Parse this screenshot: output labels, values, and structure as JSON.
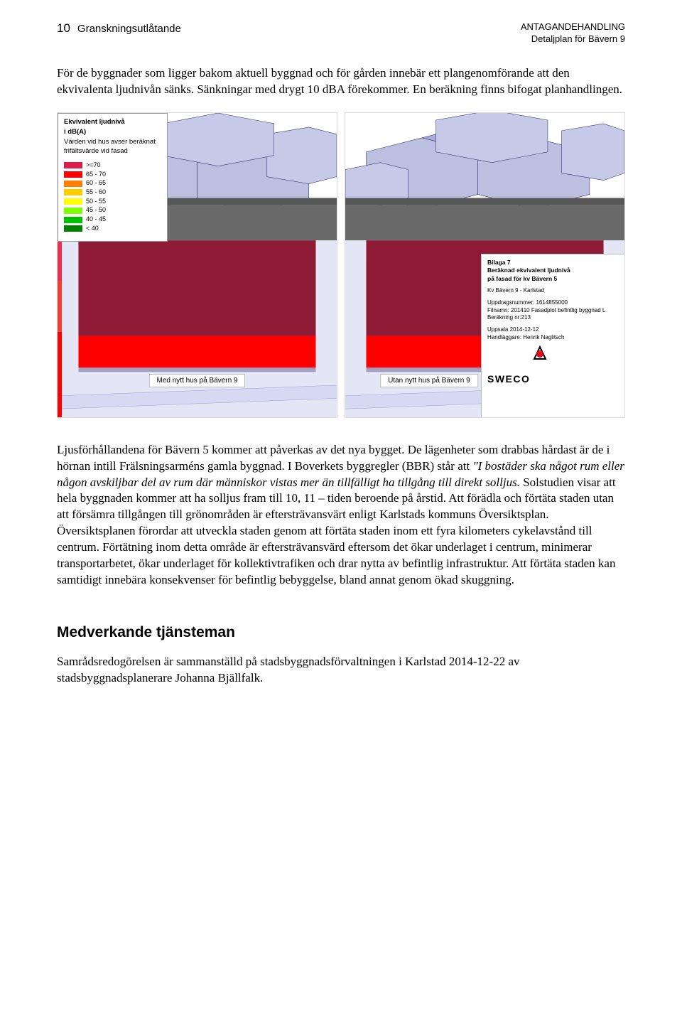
{
  "header": {
    "page_number": "10",
    "doc_type": "Granskningsutlåtande",
    "status_line": "ANTAGANDEHANDLING",
    "plan_line": "Detaljplan för Bävern 9"
  },
  "paragraph1": "För de byggnader som ligger bakom aktuell byggnad och för gården innebär ett plangenomförande att den ekvivalenta ljudnivån sänks. Sänkningar med drygt 10 dBA förekommer. En beräkning finns bifogat planhandlingen.",
  "figure": {
    "legend": {
      "title1": "Ekvivalent ljudnivå",
      "title2": "i dB(A)",
      "sub1": "Värden vid hus avser beräknat",
      "sub2": "frifältsvärde vid fasad",
      "items": [
        {
          "color": "#da1f4a",
          "label": ">=70"
        },
        {
          "color": "#ff0000",
          "label": "65 - 70"
        },
        {
          "color": "#ff8000",
          "label": "60 - 65"
        },
        {
          "color": "#ffcc00",
          "label": "55 - 60"
        },
        {
          "color": "#ffff00",
          "label": "50 - 55"
        },
        {
          "color": "#80ff00",
          "label": "45 - 50"
        },
        {
          "color": "#00c000",
          "label": "40 - 45"
        },
        {
          "color": "#008000",
          "label": "< 40"
        }
      ]
    },
    "caption_left": "Med nytt hus på Bävern 9",
    "caption_right": "Utan nytt hus på Bävern 9",
    "info": {
      "line1": "Bilaga 7",
      "line2": "Beräknad ekvivalent ljudnivå",
      "line3": "på fasad för kv Bävern 5",
      "proj": "Kv Bävern 9 - Karlstad",
      "uppdrag": "Uppdragsnummer: 1614855000",
      "filnamn": "Filnamn: 201410 Fasadplot befintlig byggnad L",
      "berakning": "Beräkning nr:213",
      "ort": "Uppsala 2014-12-12",
      "handlaggare": "Handläggare: Henrik Naglitsch",
      "company": "SWECO"
    },
    "colors": {
      "sky": "#ffffff",
      "ground_far": "#bdbfe0",
      "ground_near": "#e5e6f5",
      "building_side": "#c6c9e7",
      "building_top": "#a9ace0",
      "roof_grey": "#6a6a6a",
      "roof_grey_dark": "#585858",
      "facade_dark": "#8e1a36",
      "facade_red": "#ff0000",
      "edge": "#3a3a70"
    }
  },
  "paragraph2_pre": "Ljusförhållandena för Bävern 5 kommer att påverkas av det nya bygget. De lägenheter som drabbas hårdast är de i hörnan intill Frälsningsarméns gamla byggnad. I Boverkets byggregler (BBR) står att ",
  "paragraph2_italic": "\"I bostäder ska något rum eller någon avskiljbar del av rum där människor vistas mer än tillfälligt ha tillgång till direkt solljus.",
  "paragraph2_post": " Solstudien visar att hela byggnaden kommer att ha solljus fram till 10, 11 – tiden beroende på årstid. Att förädla och förtäta staden utan att försämra tillgången till grönområden är eftersträvansvärt enligt Karlstads kommuns Översiktsplan. Översiktsplanen förordar att utveckla staden genom att förtäta staden inom ett fyra kilometers cykelavstånd till centrum. Förtätning inom detta område är eftersträvansvärd eftersom det ökar underlaget i centrum, minimerar transportarbetet, ökar underlaget för kollektivtrafiken och drar nytta av befintlig infrastruktur. Att förtäta staden kan samtidigt innebära konsekvenser för befintlig bebyggelse, bland annat genom ökad skuggning.",
  "section_heading": "Medverkande tjänsteman",
  "paragraph3": "Samrådsredogörelsen är sammanställd på stadsbyggnadsförvaltningen i Karlstad 2014-12-22 av stadsbyggnadsplanerare Johanna Bjällfalk."
}
